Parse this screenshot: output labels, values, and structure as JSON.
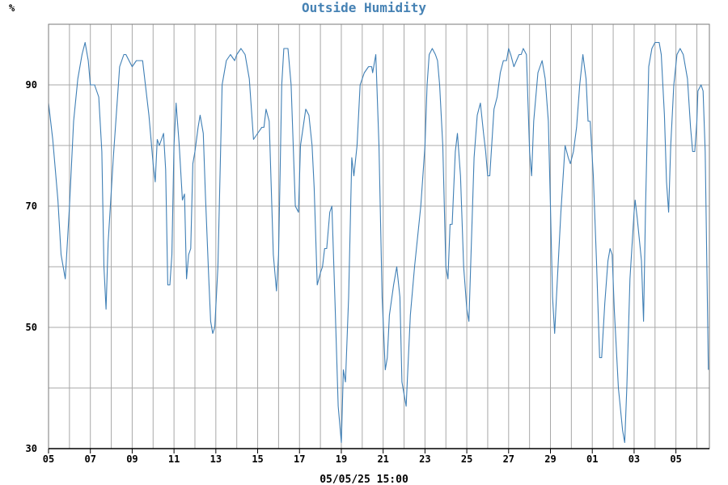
{
  "chart_data": {
    "type": "line",
    "title": "Outside Humidity",
    "ylabel": "%",
    "xlabel": "05/05/25 15:00",
    "ylim": [
      30,
      100
    ],
    "yticks": [
      30,
      50,
      70,
      90
    ],
    "grid": true,
    "color": "#3f7fb5",
    "xlim": [
      0,
      31.6
    ],
    "x_tick_labels": [
      {
        "pos": 0,
        "label": "05"
      },
      {
        "pos": 2,
        "label": "07"
      },
      {
        "pos": 4,
        "label": "09"
      },
      {
        "pos": 6,
        "label": "11"
      },
      {
        "pos": 8,
        "label": "13"
      },
      {
        "pos": 10,
        "label": "15"
      },
      {
        "pos": 12,
        "label": "17"
      },
      {
        "pos": 14,
        "label": "19"
      },
      {
        "pos": 16,
        "label": "21"
      },
      {
        "pos": 18,
        "label": "23"
      },
      {
        "pos": 20,
        "label": "25"
      },
      {
        "pos": 22,
        "label": "27"
      },
      {
        "pos": 24,
        "label": "29"
      },
      {
        "pos": 26,
        "label": "01"
      },
      {
        "pos": 28,
        "label": "03"
      },
      {
        "pos": 30,
        "label": "05"
      }
    ],
    "series": [
      {
        "points": [
          [
            0.0,
            87
          ],
          [
            0.2,
            81
          ],
          [
            0.45,
            71
          ],
          [
            0.6,
            62
          ],
          [
            0.8,
            58
          ],
          [
            1.0,
            70
          ],
          [
            1.2,
            84
          ],
          [
            1.4,
            91
          ],
          [
            1.6,
            95
          ],
          [
            1.75,
            97
          ],
          [
            1.9,
            94
          ],
          [
            2.0,
            90
          ],
          [
            2.2,
            90
          ],
          [
            2.4,
            88
          ],
          [
            2.55,
            79
          ],
          [
            2.65,
            60
          ],
          [
            2.75,
            53
          ],
          [
            2.85,
            64
          ],
          [
            3.1,
            78
          ],
          [
            3.3,
            88
          ],
          [
            3.4,
            93
          ],
          [
            3.6,
            95
          ],
          [
            3.7,
            95
          ],
          [
            3.85,
            94
          ],
          [
            4.0,
            93
          ],
          [
            4.2,
            94
          ],
          [
            4.4,
            94
          ],
          [
            4.5,
            94
          ],
          [
            4.6,
            91
          ],
          [
            4.8,
            85
          ],
          [
            5.0,
            77
          ],
          [
            5.1,
            74
          ],
          [
            5.2,
            81
          ],
          [
            5.3,
            80
          ],
          [
            5.5,
            82
          ],
          [
            5.6,
            76
          ],
          [
            5.7,
            57
          ],
          [
            5.8,
            57
          ],
          [
            5.9,
            62
          ],
          [
            6.0,
            80
          ],
          [
            6.1,
            87
          ],
          [
            6.25,
            80
          ],
          [
            6.4,
            71
          ],
          [
            6.5,
            72
          ],
          [
            6.6,
            58
          ],
          [
            6.7,
            62
          ],
          [
            6.8,
            63
          ],
          [
            6.9,
            77
          ],
          [
            7.0,
            79
          ],
          [
            7.15,
            83
          ],
          [
            7.25,
            85
          ],
          [
            7.4,
            82
          ],
          [
            7.5,
            72
          ],
          [
            7.65,
            59
          ],
          [
            7.75,
            51
          ],
          [
            7.85,
            49
          ],
          [
            7.95,
            50
          ],
          [
            8.1,
            60
          ],
          [
            8.3,
            90
          ],
          [
            8.5,
            94
          ],
          [
            8.7,
            95
          ],
          [
            8.9,
            94
          ],
          [
            9.0,
            95
          ],
          [
            9.2,
            96
          ],
          [
            9.4,
            95
          ],
          [
            9.6,
            91
          ],
          [
            9.8,
            81
          ],
          [
            10.0,
            82
          ],
          [
            10.2,
            83
          ],
          [
            10.3,
            83
          ],
          [
            10.4,
            86
          ],
          [
            10.55,
            84
          ],
          [
            10.75,
            62
          ],
          [
            10.9,
            56
          ],
          [
            11.0,
            62
          ],
          [
            11.15,
            90
          ],
          [
            11.25,
            96
          ],
          [
            11.45,
            96
          ],
          [
            11.6,
            90
          ],
          [
            11.8,
            70
          ],
          [
            11.95,
            69
          ],
          [
            12.05,
            80
          ],
          [
            12.3,
            86
          ],
          [
            12.45,
            85
          ],
          [
            12.6,
            80
          ],
          [
            12.7,
            73
          ],
          [
            12.85,
            57
          ],
          [
            13.0,
            59
          ],
          [
            13.1,
            60
          ],
          [
            13.2,
            63
          ],
          [
            13.3,
            63
          ],
          [
            13.45,
            69
          ],
          [
            13.55,
            70
          ],
          [
            13.7,
            54
          ],
          [
            13.85,
            37
          ],
          [
            14.0,
            31
          ],
          [
            14.1,
            43
          ],
          [
            14.2,
            41
          ],
          [
            14.35,
            55
          ],
          [
            14.5,
            78
          ],
          [
            14.6,
            75
          ],
          [
            14.75,
            80
          ],
          [
            14.9,
            90
          ],
          [
            15.1,
            92
          ],
          [
            15.3,
            93
          ],
          [
            15.45,
            93
          ],
          [
            15.5,
            92
          ],
          [
            15.65,
            95
          ],
          [
            15.8,
            80
          ],
          [
            15.95,
            55
          ],
          [
            16.1,
            43
          ],
          [
            16.2,
            45
          ],
          [
            16.3,
            52
          ],
          [
            16.5,
            57
          ],
          [
            16.65,
            60
          ],
          [
            16.8,
            55
          ],
          [
            16.9,
            41
          ],
          [
            17.0,
            39
          ],
          [
            17.1,
            37
          ],
          [
            17.3,
            52
          ],
          [
            17.5,
            60
          ],
          [
            17.8,
            70
          ],
          [
            18.0,
            80
          ],
          [
            18.1,
            90
          ],
          [
            18.2,
            95
          ],
          [
            18.35,
            96
          ],
          [
            18.5,
            95
          ],
          [
            18.6,
            94
          ],
          [
            18.7,
            90
          ],
          [
            18.85,
            80
          ],
          [
            19.0,
            60
          ],
          [
            19.1,
            58
          ],
          [
            19.2,
            67
          ],
          [
            19.3,
            67
          ],
          [
            19.45,
            79
          ],
          [
            19.55,
            82
          ],
          [
            19.7,
            75
          ],
          [
            19.85,
            60
          ],
          [
            20.0,
            53
          ],
          [
            20.1,
            51
          ],
          [
            20.2,
            62
          ],
          [
            20.35,
            78
          ],
          [
            20.5,
            85
          ],
          [
            20.65,
            87
          ],
          [
            20.8,
            82
          ],
          [
            20.9,
            79
          ],
          [
            21.0,
            75
          ],
          [
            21.1,
            75
          ],
          [
            21.3,
            86
          ],
          [
            21.45,
            88
          ],
          [
            21.6,
            92
          ],
          [
            21.75,
            94
          ],
          [
            21.9,
            94
          ],
          [
            22.0,
            96
          ],
          [
            22.1,
            95
          ],
          [
            22.25,
            93
          ],
          [
            22.5,
            95
          ],
          [
            22.6,
            95
          ],
          [
            22.7,
            96
          ],
          [
            22.85,
            95
          ],
          [
            23.0,
            79
          ],
          [
            23.1,
            75
          ],
          [
            23.2,
            84
          ],
          [
            23.4,
            92
          ],
          [
            23.6,
            94
          ],
          [
            23.75,
            91
          ],
          [
            23.9,
            84
          ],
          [
            24.0,
            70
          ],
          [
            24.1,
            55
          ],
          [
            24.2,
            49
          ],
          [
            24.3,
            56
          ],
          [
            24.5,
            69
          ],
          [
            24.7,
            80
          ],
          [
            24.85,
            78
          ],
          [
            24.95,
            77
          ],
          [
            25.1,
            79
          ],
          [
            25.25,
            83
          ],
          [
            25.4,
            90
          ],
          [
            25.55,
            95
          ],
          [
            25.7,
            91
          ],
          [
            25.8,
            84
          ],
          [
            25.9,
            84
          ],
          [
            26.05,
            75
          ],
          [
            26.2,
            61
          ],
          [
            26.35,
            45
          ],
          [
            26.45,
            45
          ],
          [
            26.6,
            54
          ],
          [
            26.75,
            61
          ],
          [
            26.85,
            63
          ],
          [
            26.95,
            62
          ],
          [
            27.05,
            53
          ],
          [
            27.25,
            40
          ],
          [
            27.45,
            33
          ],
          [
            27.55,
            31
          ],
          [
            27.65,
            40
          ],
          [
            27.8,
            58
          ],
          [
            28.0,
            69
          ],
          [
            28.05,
            71
          ],
          [
            28.15,
            68
          ],
          [
            28.35,
            61
          ],
          [
            28.45,
            51
          ],
          [
            28.55,
            70
          ],
          [
            28.7,
            93
          ],
          [
            28.85,
            96
          ],
          [
            29.0,
            97
          ],
          [
            29.2,
            97
          ],
          [
            29.3,
            95
          ],
          [
            29.45,
            85
          ],
          [
            29.55,
            74
          ],
          [
            29.65,
            69
          ],
          [
            29.75,
            80
          ],
          [
            29.9,
            90
          ],
          [
            30.05,
            95
          ],
          [
            30.2,
            96
          ],
          [
            30.35,
            95
          ],
          [
            30.55,
            91
          ],
          [
            30.7,
            83
          ],
          [
            30.8,
            79
          ],
          [
            30.9,
            79
          ],
          [
            31.0,
            84
          ],
          [
            31.05,
            89
          ],
          [
            31.2,
            90
          ],
          [
            31.3,
            89
          ],
          [
            31.4,
            79
          ],
          [
            31.48,
            60
          ],
          [
            31.55,
            43
          ]
        ]
      }
    ]
  }
}
